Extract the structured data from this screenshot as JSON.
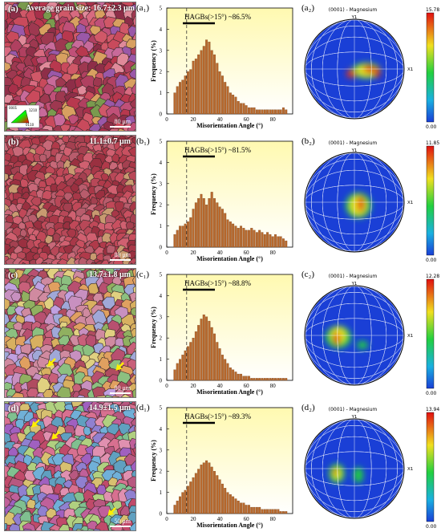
{
  "panels": [
    {
      "ebsd_label": "(a)",
      "grain_size": "Average grain size: 16.7±2.3 μm",
      "scale_bar": "80 μm",
      "hist_label": "(a₁)",
      "hagb_text": "HAGBs(>15°) ~86.5%",
      "pf_label": "(a₂)",
      "pf_max": "15.78",
      "ipf_legend": [
        "0001",
        "1210",
        "0110"
      ]
    },
    {
      "ebsd_label": "(b)",
      "grain_size": "11.1±0.7 μm",
      "scale_bar": "80 μm",
      "hist_label": "(b₁)",
      "hagb_text": "HAGBs(>15°) ~81.5%",
      "pf_label": "(b₂)",
      "pf_max": "11.85"
    },
    {
      "ebsd_label": "(c)",
      "grain_size": "13.7±1.8 μm",
      "scale_bar": "80 μm",
      "hist_label": "(c₁)",
      "hagb_text": "HAGBs(>15°) ~88.8%",
      "pf_label": "(c₂)",
      "pf_max": "12.28"
    },
    {
      "ebsd_label": "(d)",
      "grain_size": "14.9±1.5 μm",
      "scale_bar": "50 μm",
      "hist_label": "(d₁)",
      "hagb_text": "HAGBs(>15°) ~89.3%",
      "pf_label": "(d₂)",
      "pf_max": "13.94"
    }
  ],
  "pf_common": {
    "title": "(0001) - Magnesium",
    "y_axis": "Y1",
    "x_axis": "X1",
    "min": "0.00"
  },
  "colors": {
    "histogram_bar": "#b8692e",
    "hist_bg_top": "#fff9b0",
    "hist_bg_bottom": "#ffffff",
    "pf_low": "#1a3fd6",
    "pf_high": "#e01010"
  },
  "chart_data": [
    {
      "type": "bar",
      "xlabel": "Misorientation Angle (°)",
      "ylabel": "Frequency (%)",
      "xlim": [
        0,
        95
      ],
      "ylim": [
        0,
        5
      ],
      "xticks": [
        0,
        20,
        40,
        60,
        80
      ],
      "yticks": [
        0,
        1,
        2,
        3,
        4,
        5
      ],
      "threshold_line": 15,
      "x": [
        2,
        4,
        6,
        8,
        10,
        12,
        14,
        16,
        18,
        20,
        22,
        24,
        26,
        28,
        30,
        32,
        34,
        36,
        38,
        40,
        42,
        44,
        46,
        48,
        50,
        52,
        54,
        56,
        58,
        60,
        62,
        64,
        66,
        68,
        70,
        72,
        74,
        76,
        78,
        80,
        82,
        84,
        86,
        88,
        90
      ],
      "values": [
        0.0,
        0.0,
        1.0,
        1.3,
        1.5,
        1.6,
        1.8,
        2.0,
        2.1,
        2.5,
        2.6,
        2.8,
        3.0,
        3.2,
        3.5,
        3.4,
        3.0,
        2.8,
        2.4,
        2.0,
        1.8,
        1.5,
        1.3,
        1.0,
        0.9,
        0.8,
        0.6,
        0.5,
        0.5,
        0.4,
        0.3,
        0.3,
        0.3,
        0.2,
        0.2,
        0.2,
        0.2,
        0.2,
        0.2,
        0.2,
        0.2,
        0.2,
        0.2,
        0.3,
        0.2
      ]
    },
    {
      "type": "bar",
      "xlabel": "Misorientation Angle (°)",
      "ylabel": "Frequency (%)",
      "xlim": [
        0,
        95
      ],
      "ylim": [
        0,
        5
      ],
      "xticks": [
        0,
        20,
        40,
        60,
        80
      ],
      "yticks": [
        0,
        1,
        2,
        3,
        4,
        5
      ],
      "threshold_line": 15,
      "x": [
        2,
        4,
        6,
        8,
        10,
        12,
        14,
        16,
        18,
        20,
        22,
        24,
        26,
        28,
        30,
        32,
        34,
        36,
        38,
        40,
        42,
        44,
        46,
        48,
        50,
        52,
        54,
        56,
        58,
        60,
        62,
        64,
        66,
        68,
        70,
        72,
        74,
        76,
        78,
        80,
        82,
        84,
        86,
        88,
        90
      ],
      "values": [
        0.0,
        0.0,
        0.6,
        0.8,
        1.0,
        1.0,
        1.1,
        1.2,
        1.4,
        1.8,
        2.1,
        2.3,
        2.5,
        2.3,
        2.0,
        2.3,
        2.6,
        2.3,
        2.1,
        1.9,
        1.8,
        1.6,
        1.3,
        1.2,
        1.1,
        1.0,
        0.9,
        1.0,
        0.9,
        0.8,
        0.8,
        0.9,
        0.8,
        0.7,
        0.8,
        0.7,
        0.6,
        0.7,
        0.6,
        0.5,
        0.6,
        0.5,
        0.5,
        0.4,
        0.3
      ]
    },
    {
      "type": "bar",
      "xlabel": "Misorientation Angle (°)",
      "ylabel": "Frequency (%)",
      "xlim": [
        0,
        95
      ],
      "ylim": [
        0,
        5
      ],
      "xticks": [
        0,
        20,
        40,
        60,
        80
      ],
      "yticks": [
        0,
        1,
        2,
        3,
        4,
        5
      ],
      "threshold_line": 15,
      "x": [
        2,
        4,
        6,
        8,
        10,
        12,
        14,
        16,
        18,
        20,
        22,
        24,
        26,
        28,
        30,
        32,
        34,
        36,
        38,
        40,
        42,
        44,
        46,
        48,
        50,
        52,
        54,
        56,
        58,
        60,
        62,
        64,
        66,
        68,
        70,
        72,
        74,
        76,
        78,
        80,
        82,
        84,
        86,
        88,
        90
      ],
      "values": [
        0.0,
        0.0,
        0.5,
        0.8,
        1.0,
        1.2,
        1.4,
        1.6,
        1.8,
        2.0,
        2.3,
        2.6,
        2.9,
        3.1,
        3.0,
        2.8,
        2.5,
        2.2,
        1.8,
        1.5,
        1.2,
        1.0,
        0.8,
        0.6,
        0.5,
        0.4,
        0.3,
        0.3,
        0.2,
        0.2,
        0.2,
        0.1,
        0.1,
        0.1,
        0.1,
        0.1,
        0.1,
        0.1,
        0.1,
        0.1,
        0.1,
        0.1,
        0.1,
        0.1,
        0.1
      ]
    },
    {
      "type": "bar",
      "xlabel": "Misorientation Angle (°)",
      "ylabel": "Frequency (%)",
      "xlim": [
        0,
        95
      ],
      "ylim": [
        0,
        5
      ],
      "xticks": [
        0,
        20,
        40,
        60,
        80
      ],
      "yticks": [
        0,
        1,
        2,
        3,
        4,
        5
      ],
      "threshold_line": 15,
      "x": [
        2,
        4,
        6,
        8,
        10,
        12,
        14,
        16,
        18,
        20,
        22,
        24,
        26,
        28,
        30,
        32,
        34,
        36,
        38,
        40,
        42,
        44,
        46,
        48,
        50,
        52,
        54,
        56,
        58,
        60,
        62,
        64,
        66,
        68,
        70,
        72,
        74,
        76,
        78,
        80,
        82,
        84,
        86,
        88,
        90
      ],
      "values": [
        0.0,
        0.0,
        0.4,
        0.6,
        0.8,
        1.0,
        1.1,
        1.3,
        1.5,
        1.7,
        1.9,
        2.1,
        2.3,
        2.4,
        2.5,
        2.4,
        2.2,
        2.0,
        1.8,
        1.6,
        1.4,
        1.2,
        1.0,
        0.9,
        0.8,
        0.7,
        0.6,
        0.5,
        0.5,
        0.4,
        0.4,
        0.3,
        0.3,
        0.3,
        0.3,
        0.2,
        0.2,
        0.2,
        0.2,
        0.2,
        0.2,
        0.2,
        0.1,
        0.1,
        0.1
      ]
    }
  ]
}
